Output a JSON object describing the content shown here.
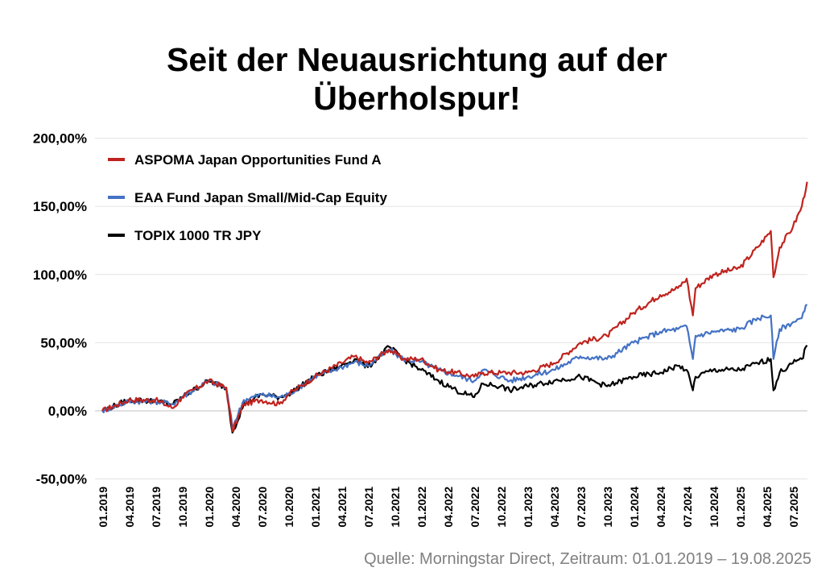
{
  "chart_data": {
    "type": "line",
    "title_lines": [
      "Seit der Neuausrichtung auf der",
      "Überholspur!"
    ],
    "xlabel": "",
    "ylabel": "",
    "ylim": [
      -50,
      200
    ],
    "yticks": [
      -50,
      0,
      50,
      100,
      150,
      200
    ],
    "ytick_labels": [
      "-50,00%",
      "0,00%",
      "50,00%",
      "100,00%",
      "150,00%",
      "200,00%"
    ],
    "x_unit": "months since 01.2019",
    "xtick_labels": [
      "01.2019",
      "04.2019",
      "07.2019",
      "10.2019",
      "01.2020",
      "04.2020",
      "07.2020",
      "10.2020",
      "01.2021",
      "04.2021",
      "07.2021",
      "10.2021",
      "01.2022",
      "04.2022",
      "07.2022",
      "10.2022",
      "01.2023",
      "04.2023",
      "07.2023",
      "10.2023",
      "01.2024",
      "04.2024",
      "07.2024",
      "10.2024",
      "01.2025",
      "04.2025",
      "07.2025"
    ],
    "grid": true,
    "legend_position": "top-left",
    "x": [
      0,
      3,
      6,
      8,
      9,
      12,
      14,
      14.7,
      16,
      18,
      20,
      21,
      24,
      27,
      28.5,
      30,
      32.4,
      34,
      36,
      38,
      40,
      42,
      43,
      45,
      46,
      48,
      51,
      54,
      57,
      60,
      63,
      65,
      66,
      66.7,
      67,
      69,
      72,
      74,
      75.5,
      75.8,
      76.5,
      78,
      79,
      79.6
    ],
    "series": [
      {
        "name": "ASPOMA Japan Opportunities Fund A",
        "color": "#c0231e",
        "values": [
          0,
          8,
          8,
          2,
          10,
          22,
          17,
          -15,
          5,
          8,
          5,
          12,
          25,
          35,
          40,
          35,
          45,
          38,
          38,
          30,
          28,
          25,
          28,
          28,
          28,
          28,
          35,
          50,
          55,
          72,
          85,
          90,
          97,
          70,
          90,
          100,
          105,
          120,
          132,
          98,
          120,
          135,
          150,
          168
        ]
      },
      {
        "name": "EAA Fund Japan Small/Mid-Cap Equity",
        "color": "#4472c4",
        "values": [
          0,
          7,
          7,
          5,
          10,
          22,
          17,
          -12,
          8,
          12,
          10,
          12,
          25,
          32,
          36,
          33,
          45,
          38,
          36,
          30,
          26,
          22,
          30,
          25,
          22,
          25,
          30,
          40,
          38,
          50,
          58,
          60,
          62,
          38,
          55,
          58,
          60,
          68,
          70,
          38,
          60,
          65,
          68,
          78
        ]
      },
      {
        "name": "TOPIX 1000 TR JPY",
        "color": "#000000",
        "values": [
          0,
          8,
          7,
          5,
          10,
          22,
          17,
          -16,
          5,
          12,
          10,
          12,
          25,
          33,
          38,
          32,
          47,
          38,
          30,
          22,
          15,
          10,
          20,
          18,
          15,
          18,
          22,
          25,
          18,
          25,
          28,
          33,
          30,
          15,
          25,
          30,
          30,
          35,
          38,
          15,
          28,
          35,
          38,
          48
        ]
      }
    ]
  },
  "source": "Quelle: Morningstar Direct, Zeitraum: 01.01.2019 – 19.08.2025"
}
